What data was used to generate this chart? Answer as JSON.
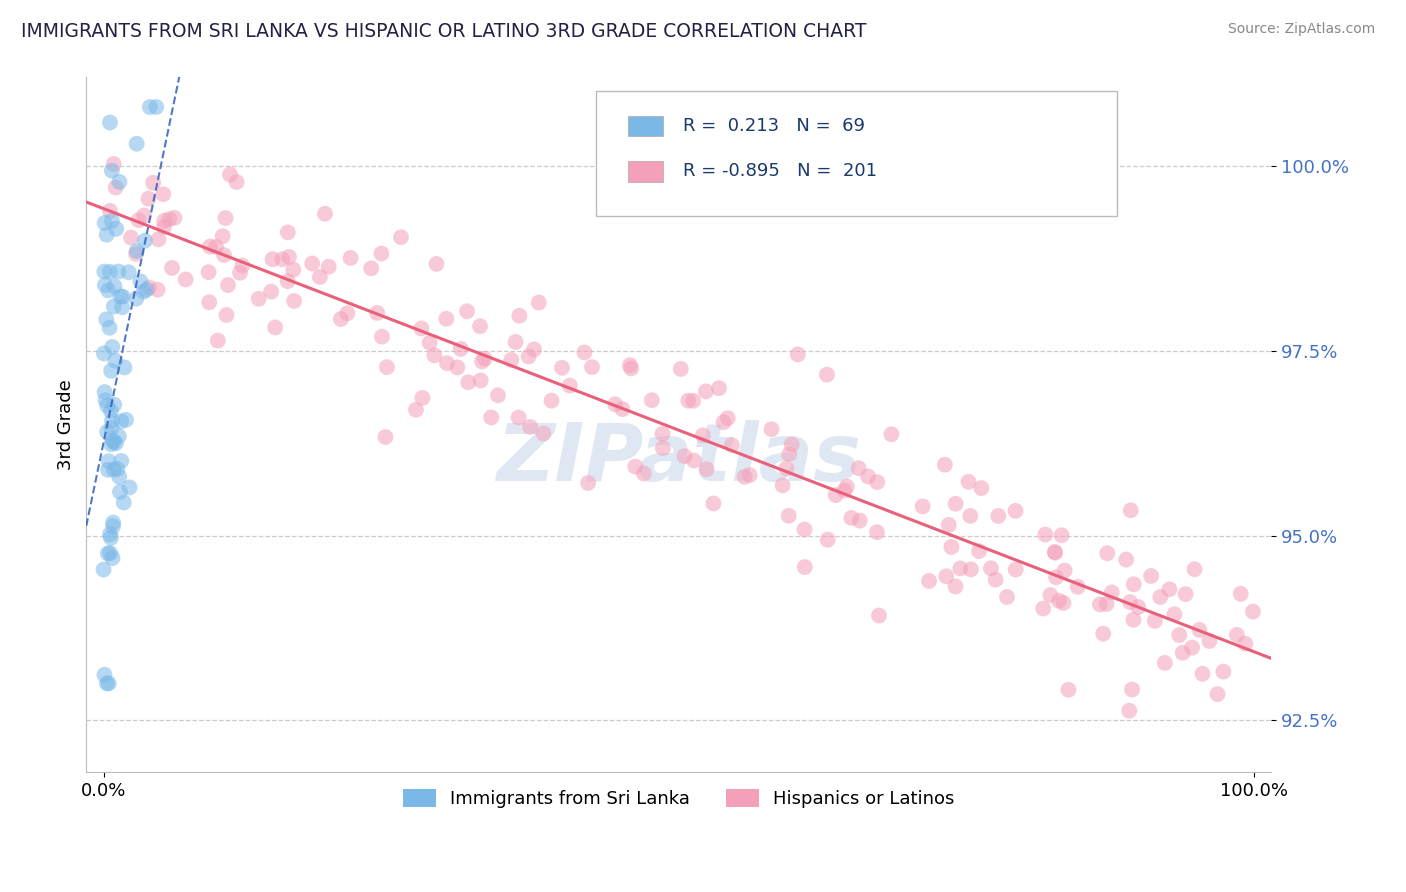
{
  "title": "IMMIGRANTS FROM SRI LANKA VS HISPANIC OR LATINO 3RD GRADE CORRELATION CHART",
  "source_text": "Source: ZipAtlas.com",
  "ylabel": "3rd Grade",
  "ytick_values": [
    92.5,
    95.0,
    97.5,
    100.0
  ],
  "ymin": 91.8,
  "ymax": 101.2,
  "xmin": -1.5,
  "xmax": 101.5,
  "legend_R1": "0.213",
  "legend_N1": "69",
  "legend_R2": "-0.895",
  "legend_N2": "201",
  "blue_color": "#7ab8e8",
  "pink_color": "#f4a0b8",
  "blue_line_color": "#3060c0",
  "pink_line_color": "#e8607a",
  "background_color": "#ffffff",
  "watermark_text": "ZIPatlas",
  "watermark_color": "#c8d8ea",
  "blue_marker_alpha": 0.55,
  "pink_marker_alpha": 0.55,
  "marker_size": 130
}
